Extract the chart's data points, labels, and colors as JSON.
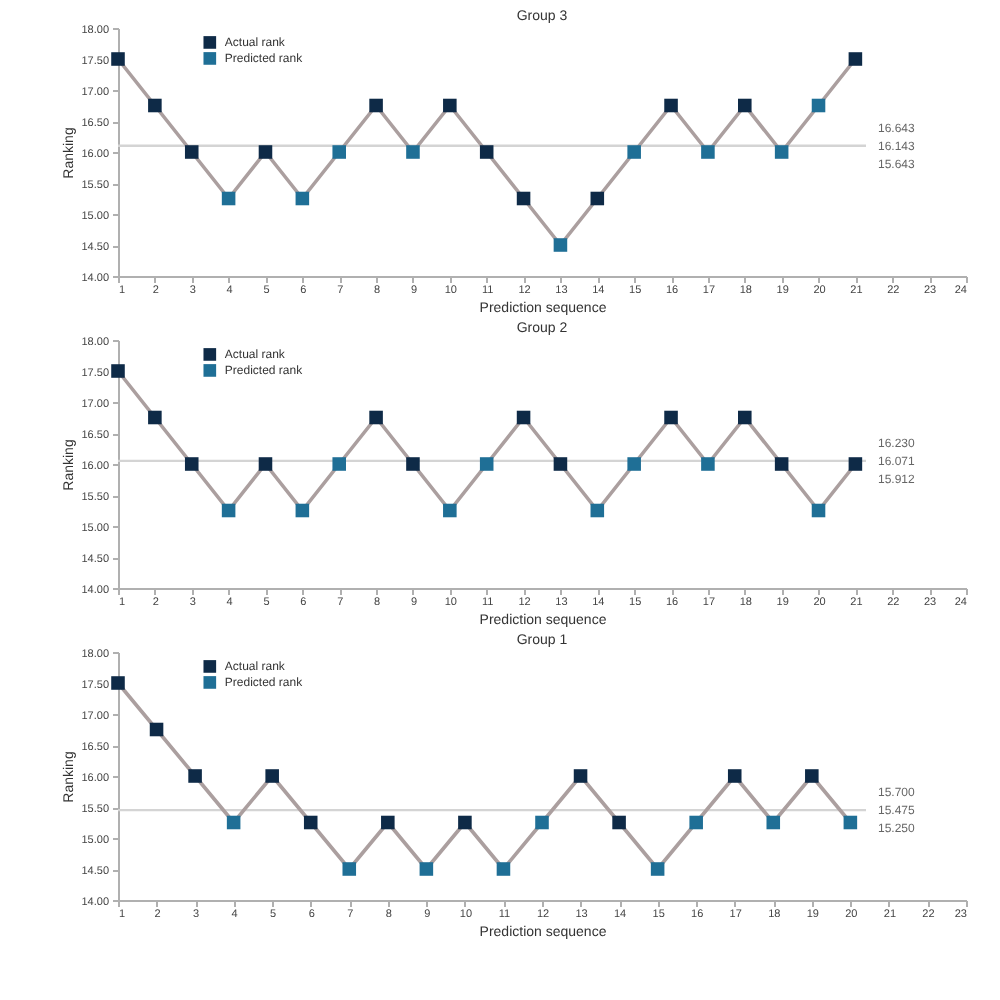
{
  "chart_data": [
    {
      "type": "line",
      "title": "Group 3",
      "xlabel": "Prediction sequence",
      "ylabel": "Ranking",
      "legend": "top left",
      "x": [
        1,
        2,
        3,
        4,
        5,
        6,
        7,
        8,
        9,
        10,
        11,
        12,
        13,
        14,
        15,
        16,
        17,
        18,
        19,
        20,
        21
      ],
      "xlim": [
        1,
        24
      ],
      "xticks": [
        1,
        2,
        3,
        4,
        5,
        6,
        7,
        8,
        9,
        10,
        11,
        12,
        13,
        14,
        15,
        16,
        17,
        18,
        19,
        20,
        21,
        22,
        23,
        24
      ],
      "ylim": [
        14,
        18
      ],
      "yticks": [
        {
          "value": 14,
          "label": "14.00"
        },
        {
          "value": 14.5,
          "label": "14.50"
        },
        {
          "value": 15,
          "label": "15.00"
        },
        {
          "value": 15.5,
          "label": "15.50"
        },
        {
          "value": 16,
          "label": "16.00"
        },
        {
          "value": 16.5,
          "label": "16.50"
        },
        {
          "value": 17,
          "label": "17.00"
        },
        {
          "value": 17.5,
          "label": "17.50"
        },
        {
          "value": 18,
          "label": "18.00"
        }
      ],
      "ref_lines": [
        {
          "axis": "y",
          "value": 16.1,
          "color": "#d4d4d4"
        }
      ],
      "annotations": [
        "16.643",
        "16.143",
        "15.643"
      ],
      "series": [
        {
          "color": "#ab9f9f",
          "values": [
            17.5,
            16.75,
            16,
            15.25,
            16,
            15.25,
            16,
            16.75,
            16,
            16.75,
            16,
            15.25,
            14.5,
            15.25,
            16,
            16.75,
            16,
            16.75,
            16,
            16.75,
            17.5
          ]
        },
        {
          "type": "scatter",
          "marker": "square",
          "name": "Actual rank",
          "color": "#0e2a47",
          "values": [
            17.5,
            16.75,
            16,
            null,
            16,
            null,
            null,
            16.75,
            null,
            16.75,
            16,
            15.25,
            null,
            15.25,
            null,
            16.75,
            null,
            16.75,
            null,
            null,
            17.5
          ]
        },
        {
          "type": "scatter",
          "marker": "square",
          "name": "Predicted rank",
          "color": "#1f6f96",
          "values": [
            null,
            null,
            null,
            15.25,
            null,
            15.25,
            16,
            null,
            16,
            null,
            null,
            null,
            14.5,
            null,
            16,
            null,
            16,
            null,
            16,
            16.75,
            null
          ]
        }
      ]
    },
    {
      "type": "line",
      "title": "Group 2",
      "xlabel": "Prediction sequence",
      "ylabel": "Ranking",
      "legend": "top left",
      "x": [
        1,
        2,
        3,
        4,
        5,
        6,
        7,
        8,
        9,
        10,
        11,
        12,
        13,
        14,
        15,
        16,
        17,
        18,
        19,
        20,
        21
      ],
      "xlim": [
        1,
        24
      ],
      "xticks": [
        1,
        2,
        3,
        4,
        5,
        6,
        7,
        8,
        9,
        10,
        11,
        12,
        13,
        14,
        15,
        16,
        17,
        18,
        19,
        20,
        21,
        22,
        23,
        24
      ],
      "ylim": [
        14,
        18
      ],
      "yticks": [
        {
          "value": 14,
          "label": "14.00"
        },
        {
          "value": 14.5,
          "label": "14.50"
        },
        {
          "value": 15,
          "label": "15.00"
        },
        {
          "value": 15.5,
          "label": "15.50"
        },
        {
          "value": 16,
          "label": "16.00"
        },
        {
          "value": 16.5,
          "label": "16.50"
        },
        {
          "value": 17,
          "label": "17.00"
        },
        {
          "value": 17.5,
          "label": "17.50"
        },
        {
          "value": 18,
          "label": "18.00"
        }
      ],
      "ref_lines": [
        {
          "axis": "y",
          "value": 16.05,
          "color": "#d4d4d4"
        }
      ],
      "annotations": [
        "16.230",
        "16.071",
        "15.912"
      ],
      "series": [
        {
          "color": "#ab9f9f",
          "values": [
            17.5,
            16.75,
            16,
            15.25,
            16,
            15.25,
            16,
            16.75,
            16,
            15.25,
            16,
            16.75,
            16,
            15.25,
            16,
            16.75,
            16,
            16.75,
            16,
            15.25,
            16
          ]
        },
        {
          "type": "scatter",
          "marker": "square",
          "name": "Actual rank",
          "color": "#0e2a47",
          "values": [
            17.5,
            16.75,
            16,
            null,
            16,
            null,
            null,
            16.75,
            16,
            null,
            null,
            16.75,
            16,
            null,
            null,
            16.75,
            null,
            16.75,
            16,
            null,
            16
          ]
        },
        {
          "type": "scatter",
          "marker": "square",
          "name": "Predicted rank",
          "color": "#1f6f96",
          "values": [
            null,
            null,
            null,
            15.25,
            null,
            15.25,
            16,
            null,
            null,
            15.25,
            16,
            null,
            null,
            15.25,
            16,
            null,
            16,
            null,
            null,
            15.25,
            null
          ]
        }
      ]
    },
    {
      "type": "line",
      "title": "Group 1",
      "xlabel": "Prediction sequence",
      "ylabel": "Ranking",
      "legend": "top left",
      "x": [
        1,
        2,
        3,
        4,
        5,
        6,
        7,
        8,
        9,
        10,
        11,
        12,
        13,
        14,
        15,
        16,
        17,
        18,
        19,
        20
      ],
      "xlim": [
        1,
        23
      ],
      "xticks": [
        1,
        2,
        3,
        4,
        5,
        6,
        7,
        8,
        9,
        10,
        11,
        12,
        13,
        14,
        15,
        16,
        17,
        18,
        19,
        20,
        21,
        22,
        23
      ],
      "ylim": [
        14,
        18
      ],
      "yticks": [
        {
          "value": 14,
          "label": "14.00"
        },
        {
          "value": 14.5,
          "label": "14.50"
        },
        {
          "value": 15,
          "label": "15.00"
        },
        {
          "value": 15.5,
          "label": "15.50"
        },
        {
          "value": 16,
          "label": "16.00"
        },
        {
          "value": 16.5,
          "label": "16.50"
        },
        {
          "value": 17,
          "label": "17.00"
        },
        {
          "value": 17.5,
          "label": "17.50"
        },
        {
          "value": 18,
          "label": "18.00"
        }
      ],
      "ref_lines": [
        {
          "axis": "y",
          "value": 15.45,
          "color": "#d4d4d4"
        }
      ],
      "annotations": [
        "15.700",
        "15.475",
        "15.250"
      ],
      "series": [
        {
          "color": "#ab9f9f",
          "values": [
            17.5,
            16.75,
            16,
            15.25,
            16,
            15.25,
            14.5,
            15.25,
            14.5,
            15.25,
            14.5,
            15.25,
            16,
            15.25,
            14.5,
            15.25,
            16,
            15.25,
            16,
            15.25
          ]
        },
        {
          "type": "scatter",
          "marker": "square",
          "name": "Actual rank",
          "color": "#0e2a47",
          "values": [
            17.5,
            16.75,
            16,
            null,
            16,
            15.25,
            null,
            15.25,
            null,
            15.25,
            null,
            null,
            16,
            15.25,
            null,
            null,
            16,
            null,
            16,
            null
          ]
        },
        {
          "type": "scatter",
          "marker": "square",
          "name": "Predicted rank",
          "color": "#1f6f96",
          "values": [
            null,
            null,
            null,
            15.25,
            null,
            null,
            14.5,
            null,
            14.5,
            null,
            14.5,
            15.25,
            null,
            null,
            14.5,
            15.25,
            null,
            15.25,
            null,
            15.25
          ]
        }
      ]
    }
  ]
}
